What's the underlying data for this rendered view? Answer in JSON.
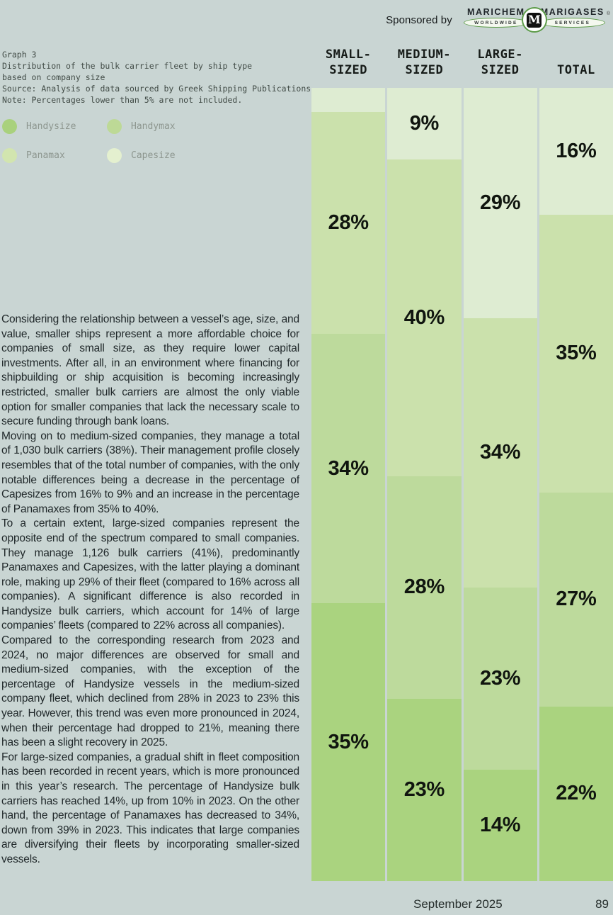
{
  "header": {
    "sponsored_by": "Sponsored by",
    "logo": {
      "left_word": "MARICHEM",
      "left_oval": "WORLDWIDE",
      "monogram": "M",
      "right_word": "MARIGASES",
      "right_oval": "SERVICES",
      "registered": "®"
    }
  },
  "caption": {
    "graph_label": "Graph 3",
    "title_line1": "Distribution of the bulk carrier fleet by ship type",
    "title_line2": "based on company size",
    "source": "Source: Analysis of data sourced by Greek Shipping Publications",
    "note": "Note: Percentages lower than 5% are not included."
  },
  "legend": {
    "items": [
      {
        "label": "Handysize",
        "color": "#a9d17d"
      },
      {
        "label": "Handymax",
        "color": "#bdd996"
      },
      {
        "label": "Panamax",
        "color": "#d2e5af"
      },
      {
        "label": "Capesize",
        "color": "#e4f0cf"
      }
    ]
  },
  "chart_data": {
    "type": "bar",
    "subtype": "stacked-vertical-100%",
    "title": "Distribution of the bulk carrier fleet by ship type based on company size",
    "note": "Percentages lower than 5% are not included.",
    "label_threshold": 5,
    "unit": "%",
    "categories": [
      {
        "id": "small",
        "label": "SMALL-\nSIZED"
      },
      {
        "id": "medium",
        "label": "MEDIUM-\nSIZED"
      },
      {
        "id": "large",
        "label": "LARGE-\nSIZED"
      },
      {
        "id": "total",
        "label": "TOTAL"
      }
    ],
    "series": [
      {
        "name": "Capesize",
        "color": "#deecd2",
        "values": [
          3,
          9,
          29,
          16
        ]
      },
      {
        "name": "Panamax",
        "color": "#cbe1ac",
        "values": [
          28,
          40,
          34,
          35
        ]
      },
      {
        "name": "Handymax",
        "color": "#bdda9c",
        "values": [
          34,
          28,
          23,
          27
        ]
      },
      {
        "name": "Handysize",
        "color": "#aad37f",
        "values": [
          35,
          23,
          14,
          22
        ]
      }
    ],
    "stack_order_top_to_bottom": [
      "Capesize",
      "Panamax",
      "Handymax",
      "Handysize"
    ]
  },
  "article": {
    "paragraphs": [
      "Considering the relationship between a vessel’s age, size, and value, smaller ships represent a more affordable choice for companies of small size, as they require lower capital investments. After all, in an environment where financing for shipbuilding or ship acquisition is becoming increasingly restricted, smaller bulk carriers are almost the only viable option for smaller companies that lack the necessary scale to secure funding through bank loans.",
      "Moving on to medium-sized companies, they manage a total of 1,030 bulk carriers (38%). Their management profile closely resembles that of the total number of companies, with the only notable differences being a decrease in the percentage of Capesizes from 16% to 9% and an increase in the percentage of Panamaxes from 35% to 40%.",
      "To a certain extent, large-sized companies represent the opposite end of the spectrum compared to small companies. They manage 1,126 bulk carriers (41%), predominantly Panamaxes and Capesizes, with the latter playing a dominant role, making up 29% of their fleet (compared to 16% across all companies). A significant difference is also recorded in Handysize bulk carriers, which account for 14% of large companies’ fleets (compared to 22% across all companies).",
      "Compared to the corresponding research from 2023 and 2024, no major differences are observed for small and medium-sized companies, with the exception of the percentage of Handysize vessels in the medium-sized company fleet, which declined from 28% in 2023 to 23% this year. However, this trend was even more pronounced in 2024, when their percentage had dropped to 21%, meaning there has been a slight recovery in 2025.",
      "For large-sized companies, a gradual shift in fleet composition has been recorded in recent years, which is more pronounced in this year’s research. The percentage of Handysize bulk carriers has reached 14%, up from 10% in 2023. On the other hand, the percentage of Panamaxes has decreased to 34%, down from 39% in 2023. This indicates that large companies are diversifying their fleets by incorporating smaller-sized vessels."
    ]
  },
  "footer": {
    "date": "September 2025",
    "page": "89"
  }
}
